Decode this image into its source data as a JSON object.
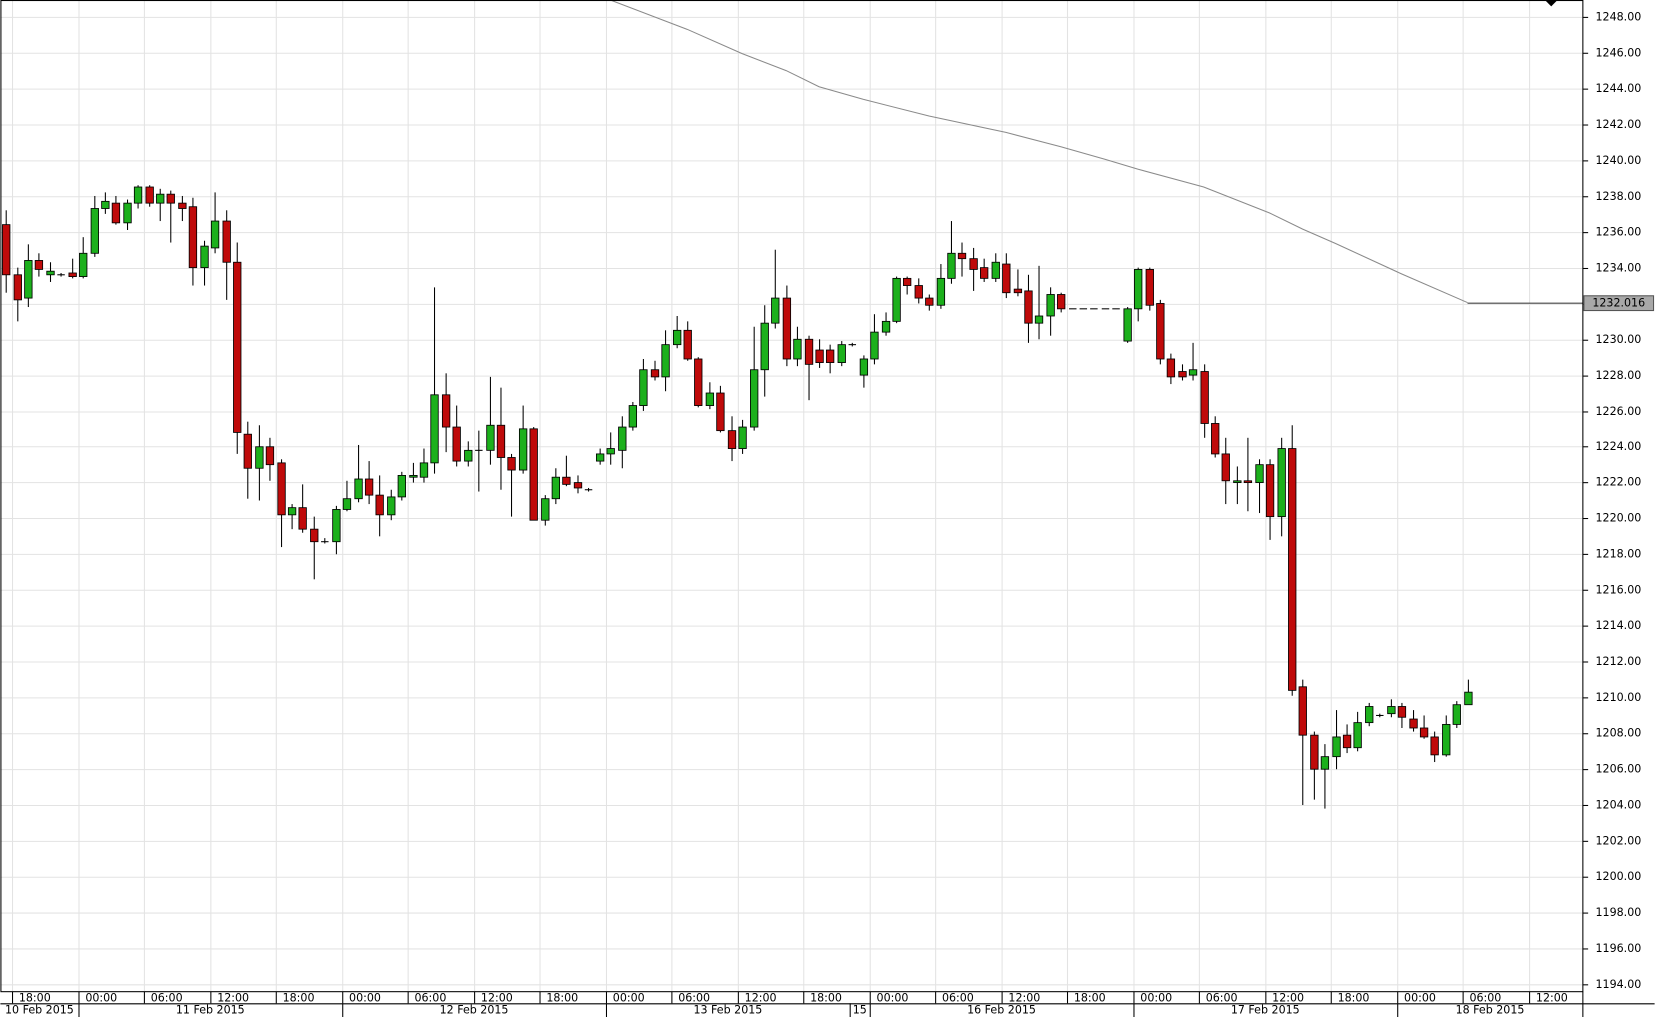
{
  "chart_data": {
    "type": "candlestick",
    "open": [
      1236.4,
      1233.6,
      1232.3,
      1234.4,
      1233.6,
      1233.6,
      1233.7,
      1233.5,
      1234.8,
      1237.3,
      1237.6,
      1236.5,
      1237.6,
      1238.5,
      1237.6,
      1238.1,
      1237.6,
      1237.4,
      1234,
      1235.1,
      1236.6,
      1234.3,
      1224.7,
      1222.8,
      1224,
      1223.1,
      1220.2,
      1220.6,
      1219.4,
      1218.7,
      1218.7,
      1220.5,
      1221.1,
      1222.2,
      1221.3,
      1220.2,
      1221.2,
      1222.3,
      1222.3,
      1223.1,
      1226.9,
      1225.1,
      1223.2,
      1223.8,
      1223.8,
      1225.2,
      1223.4,
      1222.7,
      1225,
      1219.9,
      1221.1,
      1222.3,
      1222,
      1221.6,
      1223.2,
      1223.6,
      1223.8,
      1225.1,
      1226.3,
      1228.3,
      1227.9,
      1229.7,
      1230.5,
      1228.9,
      1226.3,
      1227,
      1224.9,
      1223.9,
      1225.1,
      1228.3,
      1230.9,
      1232.3,
      1228.9,
      1230,
      1229.4,
      1229.4,
      1228.7,
      1229.7,
      1228,
      1228.9,
      1230.4,
      1231,
      1233.4,
      1233,
      1232.3,
      1231.9,
      1233.4,
      1234.8,
      1234.5,
      1234,
      1233.4,
      1234.2,
      1232.8,
      1232.7,
      1230.9,
      1231.3,
      1232.5,
      1231.7,
      1231.7,
      1231.7,
      1231.7,
      1231.7,
      1229.9,
      1231.7,
      1233.9,
      1232,
      1228.9,
      1228.2,
      1228,
      1228.2,
      1225.3,
      1223.6,
      1222,
      1222.1,
      1222,
      1223,
      1220.1,
      1223.9,
      1210.6,
      1207.9,
      1206,
      1206.7,
      1207.9,
      1207.2,
      1208.6,
      1209,
      1209.1,
      1209.5,
      1208.8,
      1208.3,
      1207.8,
      1206.8,
      1208.5,
      1209.6
    ],
    "high": [
      1237.2,
      1234,
      1235.3,
      1234.8,
      1234.3,
      1233.7,
      1234.5,
      1235.7,
      1238,
      1238.2,
      1238,
      1237.8,
      1238.6,
      1238.6,
      1238.4,
      1238.3,
      1238,
      1237.9,
      1235.5,
      1238.2,
      1237.2,
      1235.4,
      1225.4,
      1225.2,
      1224.5,
      1223.3,
      1220.8,
      1221.9,
      1220.1,
      1218.9,
      1220.7,
      1222.1,
      1224.1,
      1223.2,
      1222.4,
      1221.6,
      1222.6,
      1223.1,
      1223.9,
      1232.9,
      1228.1,
      1226.3,
      1224.3,
      1224.9,
      1227.9,
      1227.3,
      1223.6,
      1226.3,
      1225.1,
      1221.3,
      1222.8,
      1223.5,
      1222.4,
      1221.7,
      1223.9,
      1224.8,
      1225.7,
      1226.5,
      1228.9,
      1228.8,
      1230.5,
      1231.3,
      1231,
      1229,
      1227.6,
      1227.4,
      1225.7,
      1225.5,
      1230.7,
      1231.9,
      1235,
      1233,
      1230.7,
      1230.2,
      1230,
      1229.7,
      1229.9,
      1229.8,
      1229.1,
      1231.4,
      1231.5,
      1233.5,
      1233.5,
      1233.4,
      1232.5,
      1234.2,
      1236.6,
      1235.4,
      1235.1,
      1234.5,
      1234.8,
      1234.8,
      1233.9,
      1233.6,
      1234.1,
      1232.9,
      1232.6,
      1231.7,
      1231.7,
      1231.7,
      1231.7,
      1231.7,
      1231.8,
      1234,
      1234,
      1232.2,
      1229.2,
      1228.6,
      1229.8,
      1228.6,
      1225.7,
      1224.5,
      1222.9,
      1224.5,
      1223.3,
      1223.3,
      1224.5,
      1225.2,
      1211,
      1208.1,
      1207.4,
      1209.3,
      1208.5,
      1209.2,
      1209.7,
      1209.1,
      1209.9,
      1209.7,
      1209.3,
      1209,
      1208.1,
      1209,
      1209.8,
      1211
    ],
    "low": [
      1232.6,
      1231,
      1231.8,
      1233.5,
      1233.2,
      1233.5,
      1233.4,
      1233.4,
      1234.6,
      1237,
      1236.4,
      1236.1,
      1237.3,
      1237.4,
      1236.6,
      1235.4,
      1236.6,
      1233,
      1233,
      1234.8,
      1232.2,
      1223.6,
      1221.1,
      1221,
      1222.1,
      1218.4,
      1219.4,
      1219.2,
      1216.6,
      1218.6,
      1218,
      1220.4,
      1220.9,
      1220.8,
      1219,
      1219.9,
      1221,
      1222,
      1222,
      1222.5,
      1223.7,
      1222.9,
      1222.9,
      1221.5,
      1223,
      1221.6,
      1220.1,
      1222.5,
      1219.9,
      1219.6,
      1220.8,
      1221.8,
      1221.4,
      1221.5,
      1223,
      1223,
      1222.8,
      1224.9,
      1226,
      1227.7,
      1227.1,
      1229.5,
      1228.8,
      1226.2,
      1226.1,
      1224.8,
      1223.2,
      1223.6,
      1224.9,
      1226.8,
      1230.6,
      1228.5,
      1228.5,
      1226.6,
      1228.4,
      1228.1,
      1228.5,
      1229.6,
      1227.3,
      1228.6,
      1230.2,
      1230.9,
      1232.5,
      1232,
      1231.6,
      1231.7,
      1233.1,
      1233.5,
      1232.7,
      1233.2,
      1233.2,
      1232.3,
      1232.4,
      1229.8,
      1230,
      1230.2,
      1231.5,
      1231.7,
      1231.7,
      1231.7,
      1231.7,
      1231.7,
      1229.8,
      1231,
      1231.6,
      1228.6,
      1227.5,
      1227.7,
      1227.7,
      1224.5,
      1223.4,
      1220.8,
      1220.8,
      1220.4,
      1220.3,
      1218.8,
      1219,
      1210.1,
      1204,
      1204.3,
      1203.8,
      1206,
      1206.9,
      1207,
      1208.4,
      1208.9,
      1208.9,
      1208.3,
      1208.1,
      1207.7,
      1206.4,
      1206.7,
      1208.3,
      1209.6
    ],
    "close": [
      1233.6,
      1232.2,
      1234.4,
      1233.9,
      1233.8,
      1233.6,
      1233.5,
      1234.8,
      1237.3,
      1237.7,
      1236.5,
      1237.6,
      1238.5,
      1237.6,
      1238.1,
      1237.6,
      1237.3,
      1234,
      1235.2,
      1236.6,
      1234.3,
      1224.8,
      1222.8,
      1224,
      1223,
      1220.2,
      1220.6,
      1219.4,
      1218.7,
      1218.7,
      1220.5,
      1221.1,
      1222.2,
      1221.3,
      1220.2,
      1221.2,
      1222.4,
      1222.4,
      1223.1,
      1226.9,
      1225.1,
      1223.2,
      1223.8,
      1223.8,
      1225.2,
      1223.4,
      1222.7,
      1225,
      1219.9,
      1221.1,
      1222.3,
      1221.9,
      1221.7,
      1221.6,
      1223.6,
      1223.9,
      1225.1,
      1226.3,
      1228.3,
      1227.9,
      1229.7,
      1230.5,
      1228.9,
      1226.3,
      1227,
      1224.9,
      1223.9,
      1225.1,
      1228.3,
      1230.9,
      1232.3,
      1228.9,
      1230,
      1228.6,
      1228.7,
      1228.7,
      1229.7,
      1229.7,
      1228.9,
      1230.4,
      1231,
      1233.4,
      1233,
      1232.3,
      1231.9,
      1233.4,
      1234.8,
      1234.5,
      1233.9,
      1233.4,
      1234.3,
      1232.6,
      1232.6,
      1230.9,
      1231.3,
      1232.5,
      1231.7,
      1231.7,
      1231.7,
      1231.7,
      1231.7,
      1231.7,
      1231.7,
      1233.9,
      1231.9,
      1228.9,
      1227.9,
      1227.9,
      1228.3,
      1225.3,
      1223.6,
      1222.1,
      1222.1,
      1222,
      1223,
      1220.1,
      1223.9,
      1210.4,
      1207.9,
      1206,
      1206.7,
      1207.8,
      1207.2,
      1208.6,
      1209.5,
      1209,
      1209.5,
      1208.9,
      1208.3,
      1207.8,
      1206.8,
      1208.5,
      1209.6,
      1210.3
    ],
    "up_color": "#1cb01c",
    "down_color": "#bf0a0a",
    "xlim": [
      -0.5,
      143.5
    ],
    "ylim": [
      1193.58,
      1248.94
    ],
    "yticks": [
      {
        "value": 1194,
        "label": "1194.00"
      },
      {
        "value": 1196,
        "label": "1196.00"
      },
      {
        "value": 1198,
        "label": "1198.00"
      },
      {
        "value": 1200,
        "label": "1200.00"
      },
      {
        "value": 1202,
        "label": "1202.00"
      },
      {
        "value": 1204,
        "label": "1204.00"
      },
      {
        "value": 1206,
        "label": "1206.00"
      },
      {
        "value": 1208,
        "label": "1208.00"
      },
      {
        "value": 1210,
        "label": "1210.00"
      },
      {
        "value": 1212,
        "label": "1212.00"
      },
      {
        "value": 1214,
        "label": "1214.00"
      },
      {
        "value": 1216,
        "label": "1216.00"
      },
      {
        "value": 1218,
        "label": "1218.00"
      },
      {
        "value": 1220,
        "label": "1220.00"
      },
      {
        "value": 1222,
        "label": "1222.00"
      },
      {
        "value": 1224,
        "label": "1224.00"
      },
      {
        "value": 1226,
        "label": "1226.00"
      },
      {
        "value": 1228,
        "label": "1228.00"
      },
      {
        "value": 1230,
        "label": "1230.00"
      },
      {
        "value": 1232,
        "label": "1232.00"
      },
      {
        "value": 1234,
        "label": "1234.00"
      },
      {
        "value": 1236,
        "label": "1236.00"
      },
      {
        "value": 1238,
        "label": "1238.00"
      },
      {
        "value": 1240,
        "label": "1240.00"
      },
      {
        "value": 1242,
        "label": "1242.00"
      },
      {
        "value": 1244,
        "label": "1244.00"
      },
      {
        "value": 1246,
        "label": "1246.00"
      },
      {
        "value": 1248,
        "label": "1248.00"
      }
    ],
    "xticks": [
      {
        "value": 0.6,
        "label": "18:00"
      },
      {
        "value": 6.6,
        "label": "00:00"
      },
      {
        "value": 12.6,
        "label": "06:00"
      },
      {
        "value": 18.6,
        "label": "12:00"
      },
      {
        "value": 24.6,
        "label": "18:00"
      },
      {
        "value": 30.6,
        "label": "00:00"
      },
      {
        "value": 36.6,
        "label": "06:00"
      },
      {
        "value": 42.6,
        "label": "12:00"
      },
      {
        "value": 48.6,
        "label": "18:00"
      },
      {
        "value": 54.6,
        "label": "00:00"
      },
      {
        "value": 60.6,
        "label": "06:00"
      },
      {
        "value": 66.6,
        "label": "12:00"
      },
      {
        "value": 72.6,
        "label": "18:00"
      },
      {
        "value": 78.6,
        "label": "00:00"
      },
      {
        "value": 84.6,
        "label": "06:00"
      },
      {
        "value": 90.6,
        "label": "12:00"
      },
      {
        "value": 96.6,
        "label": "18:00"
      },
      {
        "value": 102.6,
        "label": "00:00"
      },
      {
        "value": 108.6,
        "label": "06:00"
      },
      {
        "value": 114.6,
        "label": "12:00"
      },
      {
        "value": 120.6,
        "label": "18:00"
      },
      {
        "value": 126.6,
        "label": "00:00"
      },
      {
        "value": 132.6,
        "label": "06:00"
      },
      {
        "value": 138.6,
        "label": "12:00"
      }
    ],
    "date_labels": [
      {
        "value": -0.5,
        "label": "10 Feb 2015"
      },
      {
        "value": 6.6,
        "label": "11 Feb 2015"
      },
      {
        "value": 30.6,
        "label": "12 Feb 2015"
      },
      {
        "value": 54.6,
        "label": "13 Feb 2015"
      },
      {
        "value": 76.8,
        "label": "15"
      },
      {
        "value": 78.6,
        "label": "16 Feb 2015"
      },
      {
        "value": 102.6,
        "label": "17 Feb 2015"
      },
      {
        "value": 126.6,
        "label": "18 Feb 2015"
      }
    ],
    "moving_average": {
      "color": "#8a8a8a",
      "x": [
        55,
        62,
        67,
        71,
        74,
        78,
        84,
        91,
        96,
        100,
        103,
        109,
        115,
        118,
        121,
        127,
        133
      ],
      "values": [
        1248.94,
        1247.3,
        1245.95,
        1245.0,
        1244.1,
        1243.4,
        1242.46,
        1241.55,
        1240.75,
        1240.05,
        1239.5,
        1238.5,
        1237.05,
        1236.15,
        1235.35,
        1233.65,
        1232.05
      ]
    },
    "last_price": 1232.016,
    "grid": true
  }
}
